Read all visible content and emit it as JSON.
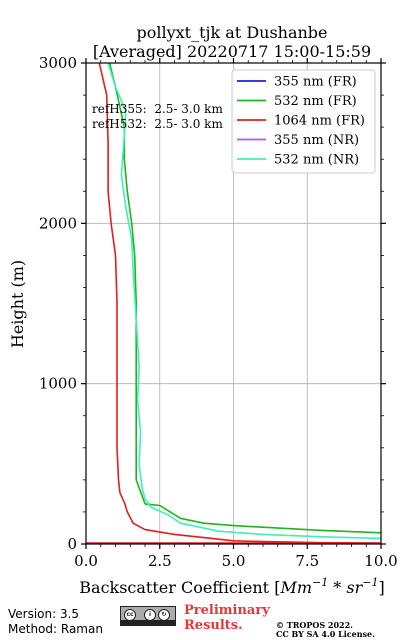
{
  "chart_data": {
    "type": "line",
    "title_line1": "pollyxt_tjk at Dushanbe",
    "title_line2": "[Averaged] 20220717 15:00-15:59",
    "xlabel": "Backscatter Coefficient [",
    "xlabel_unit": "Mm",
    "xlabel_exp1": "−1",
    "xlabel_mid": " * sr",
    "xlabel_exp2": "−1",
    "xlabel_end": "]",
    "ylabel": "Height (m)",
    "xlim": [
      0,
      10
    ],
    "ylim": [
      0,
      3000
    ],
    "xticks": [
      "0.0",
      "2.5",
      "5.0",
      "7.5",
      "10.0"
    ],
    "yticks": [
      "0",
      "1000",
      "2000",
      "3000"
    ],
    "grid": true,
    "legend_position": "top-right",
    "ref_annotations": [
      "refH355:  2.5- 3.0 km",
      "refH532:  2.5- 3.0 km"
    ],
    "series": [
      {
        "name": "355 nm (FR)",
        "color": "#1f1fe0",
        "points": []
      },
      {
        "name": "532 nm (FR)",
        "color": "#1fb51f",
        "points": [
          [
            10.0,
            70
          ],
          [
            8.0,
            85
          ],
          [
            6.0,
            105
          ],
          [
            5.0,
            115
          ],
          [
            4.0,
            130
          ],
          [
            3.2,
            160
          ],
          [
            2.5,
            240
          ],
          [
            2.0,
            250
          ],
          [
            1.9,
            300
          ],
          [
            1.8,
            350
          ],
          [
            1.7,
            400
          ],
          [
            1.7,
            800
          ],
          [
            1.7,
            1200
          ],
          [
            1.7,
            1500
          ],
          [
            1.65,
            1800
          ],
          [
            1.55,
            2000
          ],
          [
            1.4,
            2200
          ],
          [
            1.3,
            2400
          ],
          [
            1.3,
            2600
          ],
          [
            1.0,
            2850
          ],
          [
            0.8,
            3000
          ]
        ]
      },
      {
        "name": "1064 nm (FR)",
        "color": "#e01f1f",
        "points": [
          [
            10.0,
            5
          ],
          [
            8.0,
            8
          ],
          [
            6.0,
            15
          ],
          [
            5.0,
            20
          ],
          [
            4.0,
            40
          ],
          [
            3.0,
            60
          ],
          [
            2.0,
            90
          ],
          [
            1.6,
            130
          ],
          [
            1.4,
            200
          ],
          [
            1.3,
            260
          ],
          [
            1.15,
            320
          ],
          [
            1.1,
            400
          ],
          [
            1.05,
            600
          ],
          [
            1.05,
            900
          ],
          [
            1.05,
            1200
          ],
          [
            1.05,
            1500
          ],
          [
            1.0,
            1800
          ],
          [
            0.85,
            2000
          ],
          [
            0.75,
            2200
          ],
          [
            0.75,
            2500
          ],
          [
            0.7,
            2800
          ],
          [
            0.45,
            3000
          ]
        ]
      },
      {
        "name": "355 nm (NR)",
        "color": "#a25ee6",
        "points": []
      },
      {
        "name": "532 nm (NR)",
        "color": "#3ef0b8",
        "points": [
          [
            10.0,
            35
          ],
          [
            8.0,
            45
          ],
          [
            6.0,
            60
          ],
          [
            4.5,
            80
          ],
          [
            3.2,
            130
          ],
          [
            2.8,
            180
          ],
          [
            2.2,
            230
          ],
          [
            2.0,
            280
          ],
          [
            1.9,
            350
          ],
          [
            1.8,
            500
          ],
          [
            1.85,
            700
          ],
          [
            1.75,
            900
          ],
          [
            1.8,
            1100
          ],
          [
            1.7,
            1400
          ],
          [
            1.6,
            1700
          ],
          [
            1.55,
            1900
          ],
          [
            1.35,
            2100
          ],
          [
            1.2,
            2300
          ],
          [
            1.3,
            2550
          ],
          [
            1.35,
            2700
          ],
          [
            1.0,
            2850
          ],
          [
            0.75,
            3000
          ]
        ]
      }
    ]
  },
  "footer": {
    "version": "Version: 3.5",
    "method": "Method: Raman",
    "prelim_line1": "Preliminary",
    "prelim_line2": "Results.",
    "copyright_line1": "© TROPOS 2022.",
    "copyright_line2": "CC BY SA 4.0 License.",
    "license_logo": "cc-by-sa-badge"
  }
}
